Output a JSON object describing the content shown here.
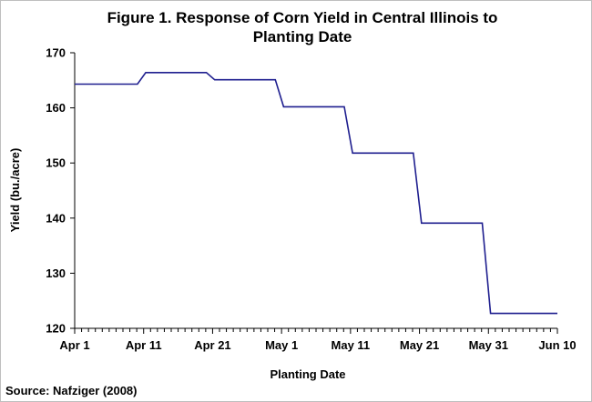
{
  "chart_data": {
    "type": "line",
    "title_lines": [
      "Figure 1. Response of Corn Yield in Central Illinois to",
      "Planting Date"
    ],
    "xlabel": "Planting Date",
    "ylabel": "Yield (bu./acre)",
    "source": "Source: Nafziger (2008)",
    "x_tick_labels": [
      "Apr 1",
      "Apr 11",
      "Apr 21",
      "May 1",
      "May 11",
      "May 21",
      "May 31",
      "Jun 10"
    ],
    "y_tick_labels": [
      "120",
      "130",
      "140",
      "150",
      "160",
      "170"
    ],
    "ylim": [
      120,
      170
    ],
    "grid": false,
    "line_color": "#1f1f8f",
    "series": [
      {
        "x": [
          "Apr 1",
          "Apr 11",
          "Apr 21",
          "May 1",
          "May 11",
          "May 21",
          "May 31",
          "Jun 10"
        ],
        "values": [
          164.3,
          166.4,
          165.1,
          160.2,
          151.8,
          139.1,
          122.7,
          122.7
        ]
      }
    ]
  }
}
